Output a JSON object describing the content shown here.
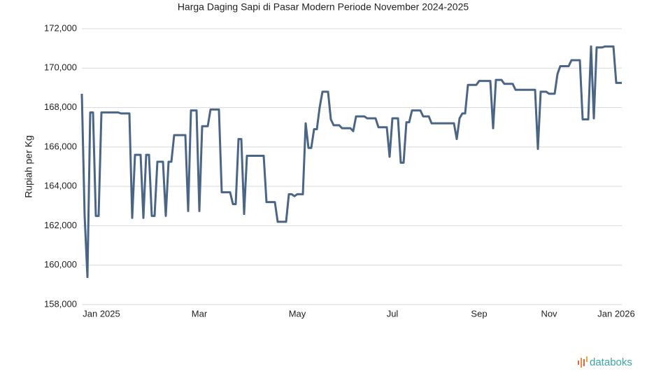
{
  "chart_data": {
    "type": "line",
    "title": "Harga Daging Sapi di Pasar Modern Periode November 2024-2025",
    "y_label": "Rupiah per Kg",
    "brand": "databoks",
    "grid": true,
    "ylim": [
      158000,
      172000
    ],
    "yticks": [
      {
        "value": 158000,
        "label": "158,000"
      },
      {
        "value": 160000,
        "label": "160,000"
      },
      {
        "value": 162000,
        "label": "162,000"
      },
      {
        "value": 164000,
        "label": "164,000"
      },
      {
        "value": 166000,
        "label": "166,000"
      },
      {
        "value": 168000,
        "label": "168,000"
      },
      {
        "value": 170000,
        "label": "170,000"
      },
      {
        "value": 172000,
        "label": "172,000"
      }
    ],
    "categories": [
      null,
      null,
      null,
      null,
      null,
      null,
      null,
      "Jan 2025",
      null,
      null,
      null,
      null,
      null,
      null,
      null,
      null,
      null,
      null,
      null,
      null,
      null,
      null,
      null,
      null,
      null,
      null,
      null,
      null,
      null,
      null,
      null,
      null,
      null,
      null,
      null,
      null,
      null,
      null,
      null,
      null,
      null,
      null,
      "Mar",
      null,
      null,
      null,
      null,
      null,
      null,
      null,
      null,
      null,
      null,
      null,
      null,
      null,
      null,
      null,
      null,
      null,
      null,
      null,
      null,
      null,
      null,
      null,
      null,
      null,
      null,
      null,
      null,
      null,
      null,
      null,
      null,
      null,
      null,
      "May",
      null,
      null,
      null,
      null,
      null,
      null,
      null,
      null,
      null,
      null,
      null,
      null,
      null,
      null,
      null,
      null,
      null,
      null,
      null,
      null,
      null,
      null,
      null,
      null,
      null,
      null,
      null,
      null,
      null,
      null,
      null,
      null,
      null,
      "Jul",
      null,
      null,
      null,
      null,
      null,
      null,
      null,
      null,
      null,
      null,
      null,
      null,
      null,
      null,
      null,
      null,
      null,
      null,
      null,
      null,
      null,
      null,
      null,
      null,
      null,
      null,
      null,
      null,
      null,
      null,
      "Sep",
      null,
      null,
      null,
      null,
      null,
      null,
      null,
      null,
      null,
      null,
      null,
      null,
      null,
      null,
      null,
      null,
      null,
      null,
      null,
      null,
      null,
      null,
      null,
      null,
      "Nov",
      null,
      null,
      null,
      null,
      null,
      null,
      null,
      null,
      null,
      null,
      null,
      null,
      null,
      null,
      null,
      null,
      null,
      null,
      null,
      null,
      null,
      null,
      null,
      "Jan 2026",
      null,
      null
    ],
    "series": [
      {
        "name": "Harga",
        "color": "#4a6585",
        "values": [
          168700,
          162500,
          159400,
          167750,
          167750,
          162500,
          162500,
          167750,
          167750,
          167750,
          167750,
          167750,
          167750,
          167750,
          167700,
          167700,
          167700,
          167700,
          162400,
          165600,
          165600,
          165600,
          162400,
          165600,
          165600,
          162500,
          162500,
          165250,
          165250,
          165250,
          162500,
          165250,
          165250,
          166600,
          166600,
          166600,
          166600,
          166600,
          162750,
          167850,
          167850,
          167850,
          162750,
          167050,
          167050,
          167050,
          167900,
          167900,
          167900,
          167900,
          163700,
          163700,
          163700,
          163700,
          163100,
          163100,
          166400,
          166400,
          162600,
          165550,
          165550,
          165550,
          165550,
          165550,
          165550,
          165550,
          163200,
          163200,
          163200,
          163200,
          162200,
          162200,
          162200,
          162200,
          163600,
          163600,
          163500,
          163600,
          163600,
          163600,
          167200,
          165950,
          165950,
          166900,
          166900,
          168000,
          168800,
          168800,
          168800,
          167400,
          167100,
          167100,
          167100,
          166950,
          166950,
          166950,
          166950,
          166800,
          167550,
          167550,
          167550,
          167550,
          167450,
          167450,
          167450,
          167450,
          167000,
          167000,
          167000,
          167000,
          165500,
          167450,
          167450,
          167450,
          165200,
          165200,
          167250,
          167250,
          167850,
          167850,
          167850,
          167850,
          167550,
          167550,
          167550,
          167200,
          167200,
          167200,
          167200,
          167200,
          167200,
          167200,
          167200,
          167200,
          166400,
          167450,
          167700,
          167700,
          169150,
          169150,
          169150,
          169150,
          169350,
          169350,
          169350,
          169350,
          169350,
          166950,
          169400,
          169400,
          169400,
          169200,
          169200,
          169200,
          169200,
          168900,
          168900,
          168900,
          168900,
          168900,
          168900,
          168900,
          168900,
          165900,
          168800,
          168800,
          168800,
          168700,
          168700,
          168700,
          169700,
          170100,
          170100,
          170100,
          170100,
          170400,
          170400,
          170400,
          170400,
          167400,
          167400,
          167400,
          171100,
          167450,
          171050,
          171050,
          171050,
          171100,
          171100,
          171100,
          171100,
          169250,
          169250,
          169250
        ]
      }
    ]
  }
}
